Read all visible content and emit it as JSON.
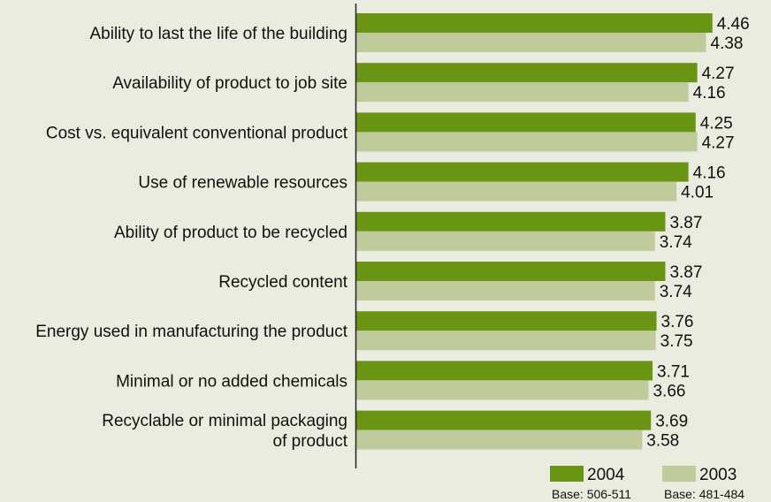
{
  "chart_data": {
    "type": "bar",
    "orientation": "horizontal",
    "categories": [
      [
        "Ability to last the life of the building"
      ],
      [
        "Availability of product to job site"
      ],
      [
        "Cost vs. equivalent conventional product"
      ],
      [
        "Use of renewable resources"
      ],
      [
        "Ability of product to be recycled"
      ],
      [
        "Recycled content"
      ],
      [
        "Energy used in manufacturing the product"
      ],
      [
        "Minimal or no added chemicals"
      ],
      [
        "Recyclable or minimal packaging",
        "of product"
      ]
    ],
    "series": [
      {
        "name": "2004",
        "color": "#6a9413",
        "values": [
          4.46,
          4.27,
          4.25,
          4.16,
          3.87,
          3.87,
          3.76,
          3.71,
          3.69
        ],
        "labels": [
          "4.46",
          "4.27",
          "4.25",
          "4.16",
          "3.87",
          "3.87",
          "3.76",
          "3.71",
          "3.69"
        ],
        "base": "Base: 506-511"
      },
      {
        "name": "2003",
        "color": "#bfcb9b",
        "values": [
          4.38,
          4.16,
          4.27,
          4.01,
          3.74,
          3.74,
          3.75,
          3.66,
          3.58
        ],
        "labels": [
          "4.38",
          "4.16",
          "4.27",
          "4.01",
          "3.74",
          "3.74",
          "3.75",
          "3.66",
          "3.58"
        ],
        "base": "Base: 481-484"
      }
    ],
    "legend_position": "bottom-right",
    "grid": false
  }
}
